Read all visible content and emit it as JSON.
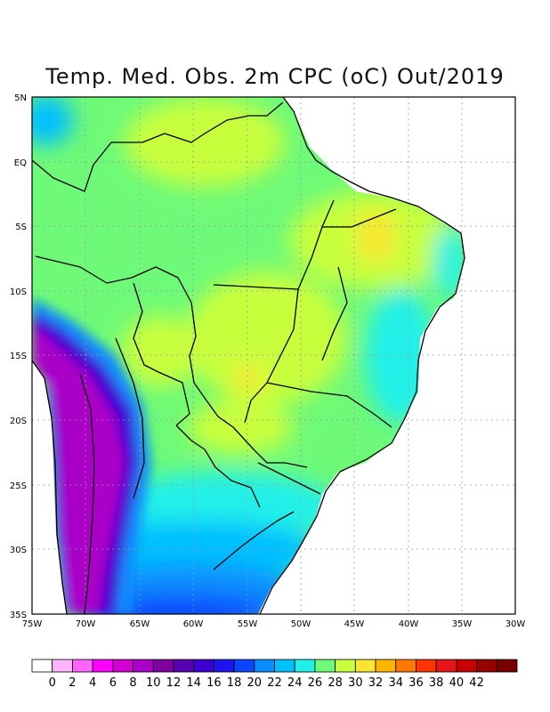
{
  "title": "Temp. Med. Obs. 2m CPC (oC) Out/2019",
  "map": {
    "lat_labels": [
      "5N",
      "EQ",
      "5S",
      "10S",
      "15S",
      "20S",
      "25S",
      "30S",
      "35S"
    ],
    "lon_labels": [
      "75W",
      "70W",
      "65W",
      "60W",
      "55W",
      "50W",
      "45W",
      "40W",
      "35W",
      "30W"
    ],
    "lat_range": [
      5,
      -35
    ],
    "lon_range": [
      -75,
      -30
    ]
  },
  "colorbar": {
    "colors": [
      "#ffffff",
      "#ffb4ff",
      "#ff64ff",
      "#ff00ff",
      "#d200d2",
      "#aa00c8",
      "#8200a0",
      "#5a00b4",
      "#3c00d2",
      "#1e14f0",
      "#0a46ff",
      "#0a8cff",
      "#00c0ff",
      "#20f0e8",
      "#6efa78",
      "#c8ff3c",
      "#fae632",
      "#ffb400",
      "#ff7800",
      "#ff3200",
      "#e61414",
      "#c80000",
      "#960000",
      "#780000"
    ],
    "tick_labels": [
      "0",
      "2",
      "4",
      "6",
      "8",
      "10",
      "12",
      "14",
      "16",
      "18",
      "20",
      "22",
      "24",
      "26",
      "28",
      "30",
      "32",
      "34",
      "36",
      "38",
      "40",
      "42"
    ]
  }
}
